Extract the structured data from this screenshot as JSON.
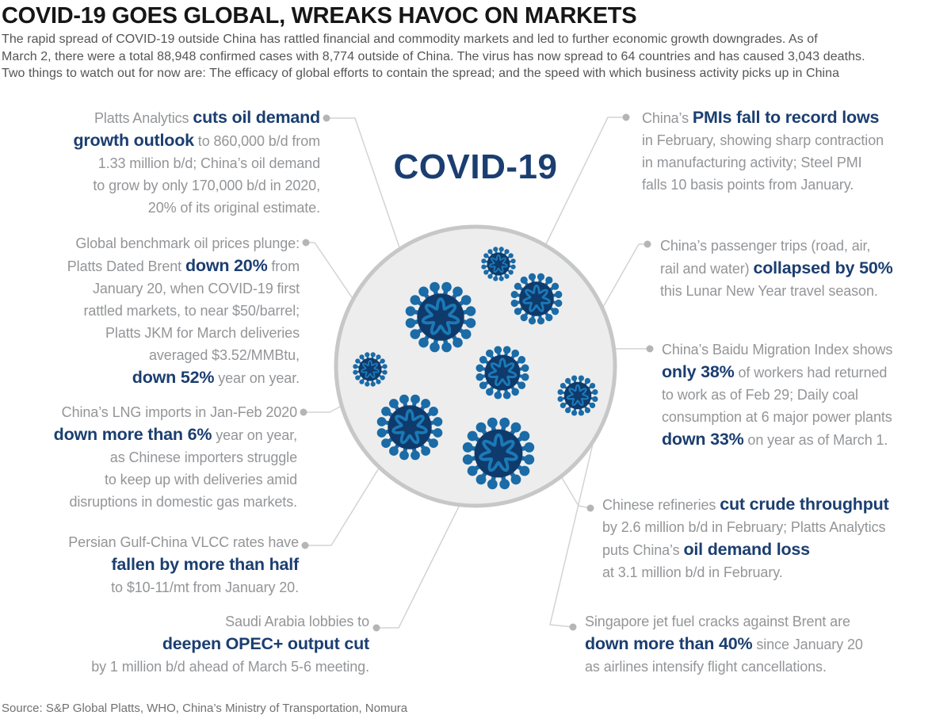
{
  "title": "COVID-19 GOES GLOBAL, WREAKS HAVOC ON MARKETS",
  "intro_lines": [
    "The rapid spread of COVID-19 outside China has rattled financial and commodity markets and led to further economic growth downgrades. As of",
    "March 2, there were a total 88,948 confirmed cases with 8,774 outside of China. The virus has now spread to 64 countries and has caused 3,043 deaths.",
    "Two things to watch out for now are: The efficacy of global efforts to contain the spread; and the speed with which business activity picks up in China"
  ],
  "center_label": "COVID-19",
  "source": "Source: S&P Global Platts, WHO, China’s Ministry of Transportation, Nomura",
  "colors": {
    "navy": "#1b3e70",
    "line": "#d3d3d3",
    "dot": "#b4b5b7",
    "circle_fill": "#ededee",
    "circle_stroke": "#c6c7c8",
    "virus_body": "#0f3a6c",
    "virus_spike": "#1a6ba6",
    "virus_squiggle": "#1b79b6"
  },
  "callouts": [
    {
      "name": "platts-oil-demand-outlook",
      "lines": [
        [
          {
            "t": "Platts Analytics ",
            "b": false
          },
          {
            "t": "cuts oil demand",
            "b": true
          }
        ],
        [
          {
            "t": "growth outlook",
            "b": true
          },
          {
            "t": " to 860,000 b/d from",
            "b": false
          }
        ],
        [
          {
            "t": "1.33 million b/d; China’s oil demand",
            "b": false
          }
        ],
        [
          {
            "t": "to grow by only 170,000 b/d in 2020,",
            "b": false
          }
        ],
        [
          {
            "t": "20% of its original estimate.",
            "b": false
          }
        ]
      ]
    },
    {
      "name": "brent-jkm-price-plunge",
      "lines": [
        [
          {
            "t": "Global benchmark oil prices plunge:",
            "b": false
          }
        ],
        [
          {
            "t": "Platts Dated Brent ",
            "b": false
          },
          {
            "t": "down 20%",
            "b": true
          },
          {
            "t": " from",
            "b": false
          }
        ],
        [
          {
            "t": "January 20, when COVID-19 first",
            "b": false
          }
        ],
        [
          {
            "t": "rattled markets, to near $50/barrel;",
            "b": false
          }
        ],
        [
          {
            "t": "Platts JKM for March deliveries",
            "b": false
          }
        ],
        [
          {
            "t": "averaged $3.52/MMBtu,",
            "b": false
          }
        ],
        [
          {
            "t": "down 52%",
            "b": true
          },
          {
            "t": " year on year.",
            "b": false
          }
        ]
      ]
    },
    {
      "name": "china-lng-imports",
      "lines": [
        [
          {
            "t": "China’s LNG imports in Jan-Feb 2020",
            "b": false
          }
        ],
        [
          {
            "t": "down more than 6%",
            "b": true
          },
          {
            "t": " year on year,",
            "b": false
          }
        ],
        [
          {
            "t": "as Chinese importers struggle",
            "b": false
          }
        ],
        [
          {
            "t": "to keep up with deliveries amid",
            "b": false
          }
        ],
        [
          {
            "t": "disruptions in domestic gas markets.",
            "b": false
          }
        ]
      ]
    },
    {
      "name": "vlcc-rates-fall",
      "lines": [
        [
          {
            "t": "Persian Gulf-China VLCC rates have",
            "b": false
          }
        ],
        [
          {
            "t": "fallen by more than half",
            "b": true
          }
        ],
        [
          {
            "t": "to $10-11/mt from January 20.",
            "b": false
          }
        ]
      ]
    },
    {
      "name": "saudi-opec-output-cut",
      "lines": [
        [
          {
            "t": "Saudi Arabia lobbies to",
            "b": false
          }
        ],
        [
          {
            "t": "deepen OPEC+ output cut",
            "b": true
          }
        ],
        [
          {
            "t": "by 1 million b/d ahead of March 5-6 meeting.",
            "b": false
          }
        ]
      ]
    },
    {
      "name": "china-pmis-record-lows",
      "lines": [
        [
          {
            "t": "China’s ",
            "b": false
          },
          {
            "t": "PMIs fall to record lows",
            "b": true
          }
        ],
        [
          {
            "t": "in February, showing sharp contraction",
            "b": false
          }
        ],
        [
          {
            "t": "in manufacturing activity; Steel PMI",
            "b": false
          }
        ],
        [
          {
            "t": "falls 10 basis points from January.",
            "b": false
          }
        ]
      ]
    },
    {
      "name": "china-passenger-trips",
      "lines": [
        [
          {
            "t": "China’s passenger trips (road, air,",
            "b": false
          }
        ],
        [
          {
            "t": "rail and water) ",
            "b": false
          },
          {
            "t": "collapsed by 50%",
            "b": true
          }
        ],
        [
          {
            "t": "this Lunar New Year travel season.",
            "b": false
          }
        ]
      ]
    },
    {
      "name": "baidu-migration-coal",
      "lines": [
        [
          {
            "t": "China’s Baidu Migration Index shows",
            "b": false
          }
        ],
        [
          {
            "t": "only 38%",
            "b": true
          },
          {
            "t": " of workers had returned",
            "b": false
          }
        ],
        [
          {
            "t": "to work as of Feb 29; Daily coal",
            "b": false
          }
        ],
        [
          {
            "t": "consumption at 6 major power plants",
            "b": false
          }
        ],
        [
          {
            "t": "down 33%",
            "b": true
          },
          {
            "t": " on year as of March 1.",
            "b": false
          }
        ]
      ]
    },
    {
      "name": "chinese-refineries-throughput",
      "lines": [
        [
          {
            "t": "Chinese refineries ",
            "b": false
          },
          {
            "t": "cut crude throughput",
            "b": true
          }
        ],
        [
          {
            "t": "by 2.6 million b/d in February; Platts Analytics",
            "b": false
          }
        ],
        [
          {
            "t": "puts China’s ",
            "b": false
          },
          {
            "t": "oil demand loss",
            "b": true
          }
        ],
        [
          {
            "t": "at 3.1 million b/d in February.",
            "b": false
          }
        ]
      ]
    },
    {
      "name": "singapore-jet-fuel-cracks",
      "lines": [
        [
          {
            "t": "Singapore jet fuel cracks against Brent are",
            "b": false
          }
        ],
        [
          {
            "t": "down more than 40%",
            "b": true
          },
          {
            "t": " since January 20",
            "b": false
          }
        ],
        [
          {
            "t": "as airlines intensify flight cancellations.",
            "b": false
          }
        ]
      ]
    }
  ]
}
